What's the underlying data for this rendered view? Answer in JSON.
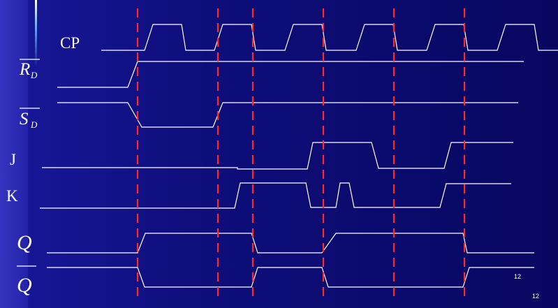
{
  "signals": [
    {
      "id": "cp",
      "label": "CP",
      "sub": ""
    },
    {
      "id": "rd",
      "label": "R",
      "sub": "D"
    },
    {
      "id": "sd",
      "label": "S",
      "sub": "D"
    },
    {
      "id": "j",
      "label": "J",
      "sub": ""
    },
    {
      "id": "k",
      "label": "K",
      "sub": ""
    },
    {
      "id": "q",
      "label": "Q",
      "sub": ""
    },
    {
      "id": "qbar",
      "label": "Q",
      "sub": ""
    }
  ],
  "page_number": "12",
  "page_number_footer": "12",
  "colors": {
    "waveform": "#ffffff",
    "clock_edge_marker": "#ff2a2a"
  }
}
